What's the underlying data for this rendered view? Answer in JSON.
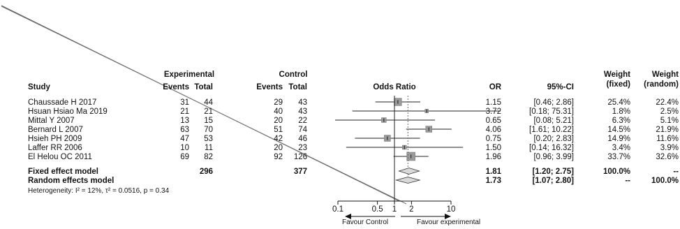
{
  "chart_data": {
    "type": "forest",
    "headers": {
      "study": "Study",
      "experimental": "Experimental",
      "control": "Control",
      "events": "Events",
      "total": "Total",
      "odds_ratio": "Odds Ratio",
      "or": "OR",
      "ci": "95%-CI",
      "weight": "Weight",
      "fixed": "(fixed)",
      "random": "(random)"
    },
    "studies": [
      {
        "name": "Chaussade H 2017",
        "exp_events": "31",
        "exp_total": "44",
        "ctrl_events": "29",
        "ctrl_total": "43",
        "or_text": "1.15",
        "ci_text": "[0.46; 2.86]",
        "w_fixed": "25.4%",
        "w_random": "22.4%",
        "or": 1.15,
        "lo": 0.46,
        "hi": 2.86
      },
      {
        "name": "Hsuan Hsiao Ma 2019",
        "exp_events": "21",
        "exp_total": "21",
        "ctrl_events": "40",
        "ctrl_total": "43",
        "or_text": "3.72",
        "ci_text": "[0.18; 75.31]",
        "w_fixed": "1.8%",
        "w_random": "2.5%",
        "or": 3.72,
        "lo": 0.18,
        "hi": 75.31
      },
      {
        "name": "Mittal Y 2007",
        "exp_events": "13",
        "exp_total": "15",
        "ctrl_events": "20",
        "ctrl_total": "22",
        "or_text": "0.65",
        "ci_text": "[0.08; 5.21]",
        "w_fixed": "6.3%",
        "w_random": "5.1%",
        "or": 0.65,
        "lo": 0.08,
        "hi": 5.21
      },
      {
        "name": "Bernard L 2007",
        "exp_events": "63",
        "exp_total": "70",
        "ctrl_events": "51",
        "ctrl_total": "74",
        "or_text": "4.06",
        "ci_text": "[1.61; 10.22]",
        "w_fixed": "14.5%",
        "w_random": "21.9%",
        "or": 4.06,
        "lo": 1.61,
        "hi": 10.22
      },
      {
        "name": "Hsieh PH 2009",
        "exp_events": "47",
        "exp_total": "53",
        "ctrl_events": "42",
        "ctrl_total": "46",
        "or_text": "0.75",
        "ci_text": "[0.20; 2.83]",
        "w_fixed": "14.9%",
        "w_random": "11.6%",
        "or": 0.75,
        "lo": 0.2,
        "hi": 2.83
      },
      {
        "name": "Laffer RR 2006",
        "exp_events": "10",
        "exp_total": "11",
        "ctrl_events": "20",
        "ctrl_total": "23",
        "or_text": "1.50",
        "ci_text": "[0.14; 16.32]",
        "w_fixed": "3.4%",
        "w_random": "3.9%",
        "or": 1.5,
        "lo": 0.14,
        "hi": 16.32
      },
      {
        "name": "El Helou OC 2011",
        "exp_events": "69",
        "exp_total": "82",
        "ctrl_events": "92",
        "ctrl_total": "126",
        "or_text": "1.96",
        "ci_text": "[0.96; 3.99]",
        "w_fixed": "33.7%",
        "w_random": "32.6%",
        "or": 1.96,
        "lo": 0.96,
        "hi": 3.99
      }
    ],
    "fixed": {
      "label": "Fixed effect model",
      "exp_total": "296",
      "ctrl_total": "377",
      "or_text": "1.81",
      "ci_text": "[1.20; 2.75]",
      "w_fixed": "100.0%",
      "w_random": "--",
      "or": 1.81,
      "lo": 1.2,
      "hi": 2.75
    },
    "random": {
      "label": "Random effects model",
      "or_text": "1.73",
      "ci_text": "[1.07; 2.80]",
      "w_fixed": "--",
      "w_random": "100.0%",
      "or": 1.73,
      "lo": 1.07,
      "hi": 2.8
    },
    "heterogeneity": "Heterogeneity: I² = 12%, τ² = 0.0516, p = 0.34",
    "axis": {
      "scale": "log",
      "ticks": [
        {
          "value": 0.1,
          "label": "0.1"
        },
        {
          "value": 0.5,
          "label": "0.5"
        },
        {
          "value": 1,
          "label": "1"
        },
        {
          "value": 2,
          "label": "2"
        },
        {
          "value": 10,
          "label": "10"
        }
      ]
    },
    "favour_left": "Favour Control",
    "favour_right": "Favour experimental"
  }
}
